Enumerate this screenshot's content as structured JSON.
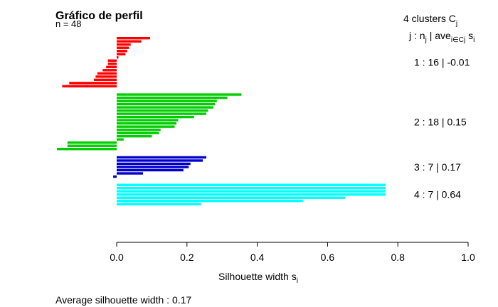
{
  "chart_data": {
    "type": "bar",
    "orientation": "horizontal",
    "title": "Gráfico de perfil",
    "n_label": "n = 48",
    "clusters_header": "4  clusters  C",
    "clusters_header_sub": "j",
    "colhead": {
      "j_nj": "j :  n",
      "j_sub": "j",
      "ave": " | ave",
      "ave_sub": "i∈Cj",
      "s": "  s",
      "s_sub": "i"
    },
    "xlabel": "Silhouette width s",
    "xlabel_sub": "i",
    "xlim": [
      0,
      1
    ],
    "xticks": [
      "0.0",
      "0.2",
      "0.4",
      "0.6",
      "0.8",
      "1.0"
    ],
    "average_label": "Average silhouette width :  0.17",
    "clusters": [
      {
        "id": 1,
        "color": "#ff0000",
        "label": "1 :   16  |  -0.01",
        "values": [
          0.095,
          0.07,
          0.04,
          0.035,
          0.03,
          0.025,
          0.005,
          -0.025,
          -0.025,
          -0.03,
          -0.04,
          -0.055,
          -0.06,
          -0.065,
          -0.135,
          -0.155
        ]
      },
      {
        "id": 2,
        "color": "#00cd00",
        "label": "2 :   18  |  0.15",
        "values": [
          0.355,
          0.315,
          0.285,
          0.28,
          0.275,
          0.26,
          0.255,
          0.22,
          0.175,
          0.17,
          0.165,
          0.125,
          0.12,
          0.1,
          0.02,
          -0.14,
          -0.14,
          -0.17
        ]
      },
      {
        "id": 3,
        "color": "#0000cd",
        "label": "3 :   7  |  0.17",
        "values": [
          0.255,
          0.245,
          0.21,
          0.205,
          0.19,
          0.075,
          -0.01
        ]
      },
      {
        "id": 4,
        "color": "#00ffff",
        "label": "4 :   7  |  0.64",
        "values": [
          0.765,
          0.765,
          0.765,
          0.765,
          0.65,
          0.53,
          0.24
        ]
      }
    ]
  }
}
